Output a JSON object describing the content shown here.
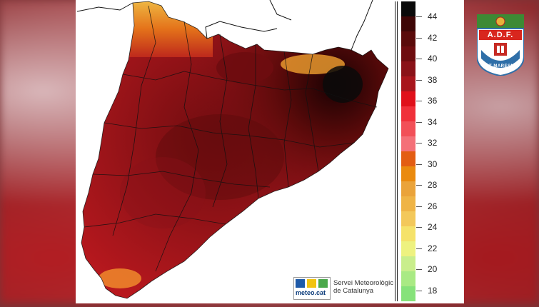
{
  "legend": {
    "ticks": [
      "44",
      "42",
      "40",
      "38",
      "36",
      "34",
      "32",
      "30",
      "28",
      "26",
      "24",
      "22",
      "20",
      "18"
    ],
    "colors": [
      "#0a0a0a",
      "#3e0606",
      "#5a0a0a",
      "#6e0c0f",
      "#8a1218",
      "#a8151c",
      "#e0101a",
      "#f0303a",
      "#f25058",
      "#f47078",
      "#e35d12",
      "#ea8a0e",
      "#eaa33a",
      "#efb446",
      "#f3c85a",
      "#f5e26a",
      "#eef280",
      "#c9ee8c",
      "#a9ea84",
      "#86e27a"
    ]
  },
  "credit": {
    "logo_text": "meteo.cat",
    "line1": "Servei Meteorològic",
    "line2": "de Catalunya"
  },
  "badge": {
    "title": "A.D.F.",
    "subtitle": "ALT MARESME"
  }
}
